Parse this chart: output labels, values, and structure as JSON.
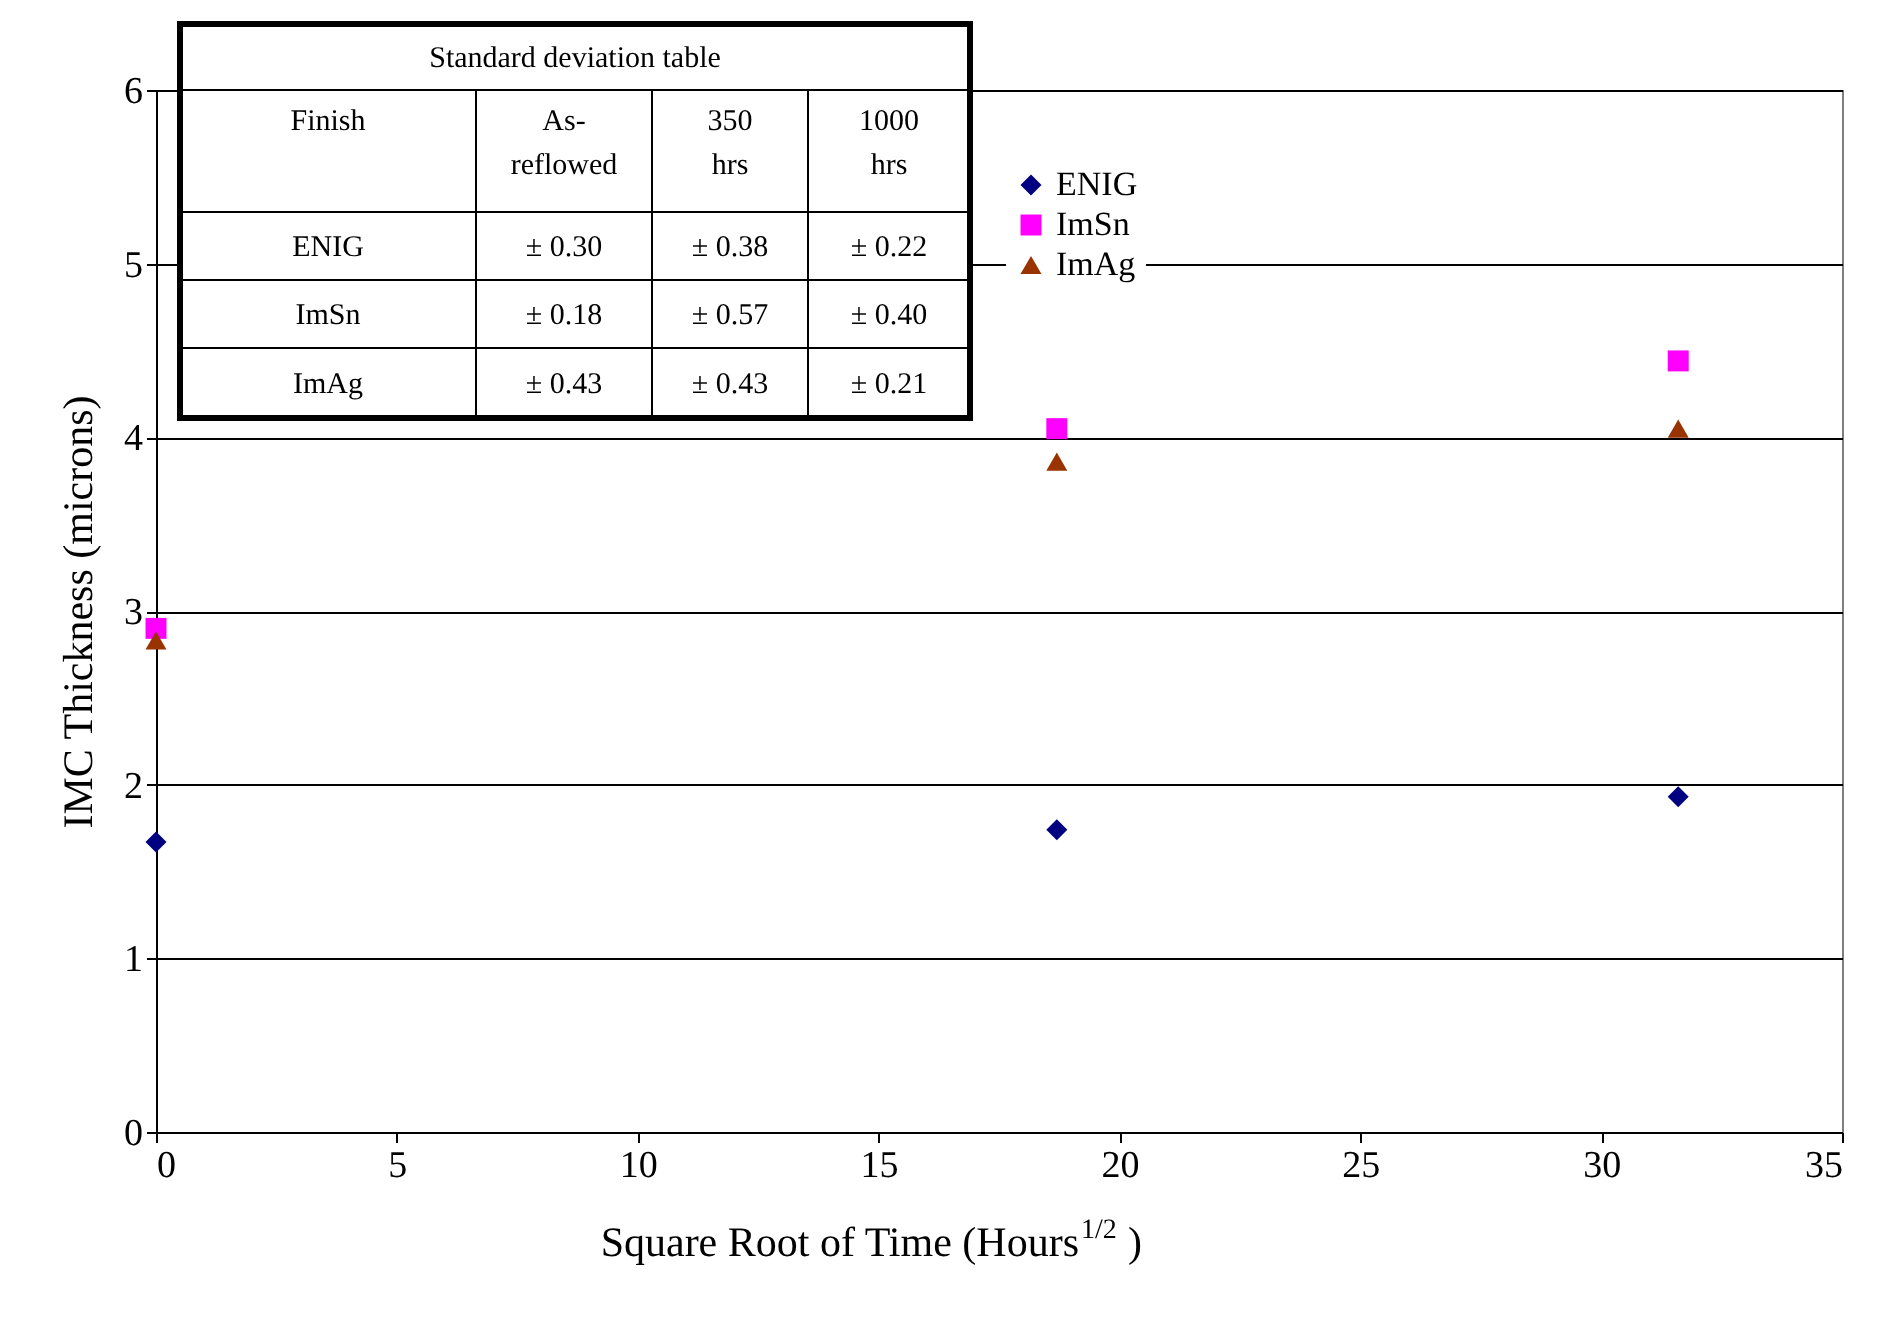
{
  "chart_data": {
    "type": "scatter",
    "xlabel": "Square Root of Time (Hours$^{1/2}$)",
    "ylabel": "IMC Thickness (microns)",
    "x": [
      0,
      18.7,
      31.6
    ],
    "series": [
      {
        "name": "ENIG",
        "color": "#000080",
        "marker": "diamond",
        "values": [
          1.67,
          1.74,
          1.93
        ]
      },
      {
        "name": "ImSn",
        "color": "#ff00ff",
        "marker": "square",
        "values": [
          2.9,
          4.05,
          4.44
        ]
      },
      {
        "name": "ImAg",
        "color": "#993300",
        "marker": "triangle",
        "values": [
          2.83,
          3.86,
          4.05
        ]
      }
    ],
    "xlim": [
      0,
      35
    ],
    "xticks": [
      0,
      5,
      10,
      15,
      20,
      25,
      30,
      35
    ],
    "ylim": [
      0,
      6
    ],
    "yticks": [
      0,
      1,
      2,
      3,
      4,
      5,
      6
    ],
    "grid": "y",
    "legend": "top center",
    "annotations": [
      "Standard deviation table",
      "Finish",
      "As-reflowed",
      "350 hrs",
      "1000 hrs",
      "ENIG",
      "± 0.30",
      "± 0.38",
      "± 0.22",
      "ImSn",
      "± 0.18",
      "± 0.57",
      "± 0.40",
      "ImAg",
      "± 0.43",
      "± 0.43",
      "± 0.21"
    ]
  }
}
